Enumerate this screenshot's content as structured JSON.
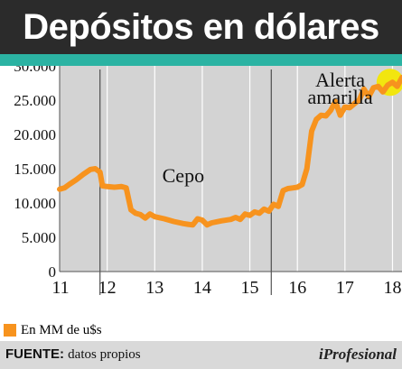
{
  "header": {
    "title": "Depósitos en dólares"
  },
  "chart_data": {
    "type": "line",
    "title": "Depósitos en dólares",
    "xlabel": "",
    "ylabel": "",
    "xlim": [
      11,
      18.2
    ],
    "ylim": [
      0,
      30000
    ],
    "x_ticks": [
      "11",
      "12",
      "13",
      "14",
      "15",
      "16",
      "17",
      "18"
    ],
    "y_ticks": [
      "0",
      "5.000",
      "10.000",
      "15.000",
      "20.000",
      "25.000",
      "30.000"
    ],
    "grid": {
      "vertical_year_lines": true,
      "horizontal": false
    },
    "reference_lines": [
      11.85,
      15.45
    ],
    "series": [
      {
        "name": "En MM de u$s",
        "color": "#f7931e",
        "x": [
          11.0,
          11.1,
          11.2,
          11.35,
          11.5,
          11.65,
          11.75,
          11.85,
          11.9,
          12.0,
          12.15,
          12.3,
          12.4,
          12.5,
          12.6,
          12.7,
          12.8,
          12.9,
          13.0,
          13.2,
          13.4,
          13.6,
          13.7,
          13.8,
          13.9,
          14.0,
          14.1,
          14.2,
          14.4,
          14.6,
          14.7,
          14.8,
          14.9,
          15.0,
          15.1,
          15.2,
          15.3,
          15.4,
          15.5,
          15.6,
          15.7,
          15.8,
          15.9,
          16.0,
          16.1,
          16.2,
          16.3,
          16.4,
          16.5,
          16.6,
          16.7,
          16.8,
          16.9,
          17.0,
          17.1,
          17.2,
          17.3,
          17.4,
          17.5,
          17.6,
          17.7,
          17.8,
          17.9,
          18.0,
          18.1,
          18.2
        ],
        "values": [
          12000,
          12200,
          12700,
          13400,
          14200,
          14900,
          15000,
          14500,
          12500,
          12400,
          12300,
          12400,
          12200,
          9000,
          8500,
          8300,
          7800,
          8400,
          8000,
          7700,
          7300,
          7000,
          6900,
          6800,
          7700,
          7500,
          6800,
          7100,
          7400,
          7600,
          7900,
          7600,
          8400,
          8200,
          8700,
          8500,
          9100,
          8800,
          9800,
          9500,
          11800,
          12100,
          12200,
          12300,
          12700,
          15000,
          20500,
          22200,
          22800,
          22700,
          23500,
          24800,
          22800,
          24000,
          23900,
          24500,
          25000,
          26600,
          25500,
          26800,
          27000,
          26200,
          27200,
          27600,
          27000,
          28300
        ]
      }
    ],
    "annotations": [
      {
        "text": "Cepo",
        "x": 13.6,
        "y": 13000
      },
      {
        "text": "Alerta\namarilla",
        "x": 16.9,
        "y": 27000
      }
    ],
    "highlight": {
      "shape": "circle",
      "color": "#f2e60f",
      "x": 17.95,
      "y": 27600
    }
  },
  "legend": {
    "label": "En MM de u$s",
    "swatch_color": "#f7931e"
  },
  "footer": {
    "source_key": "FUENTE:",
    "source_value": "datos propios",
    "brand": "iProfesional"
  }
}
